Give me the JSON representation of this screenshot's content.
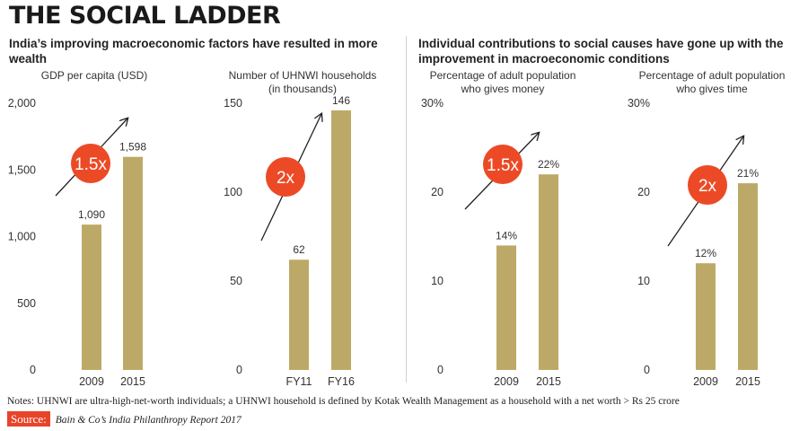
{
  "header": {
    "title": "THE SOCIAL LADDER",
    "subtitle_left": "India’s improving macroeconomic factors have resulted in more wealth",
    "subtitle_right": "Individual contributions to social causes have gone up with the improvement in macroeconomic conditions"
  },
  "chart_data": [
    {
      "type": "bar",
      "title": [
        "GDP per capita (USD)"
      ],
      "categories": [
        "2009",
        "2015"
      ],
      "values": [
        1090,
        1598
      ],
      "value_labels": [
        "1,090",
        "1,598"
      ],
      "ylim": [
        0,
        2000
      ],
      "yticks": [
        0,
        500,
        1000,
        1500,
        2000
      ],
      "ytick_labels": [
        "0",
        "500",
        "1,000",
        "1,500",
        "2,000"
      ],
      "badge": "1.5x"
    },
    {
      "type": "bar",
      "title": [
        "Number of UHNWI households",
        "(in thousands)"
      ],
      "categories": [
        "FY11",
        "FY16"
      ],
      "values": [
        62,
        146
      ],
      "value_labels": [
        "62",
        "146"
      ],
      "ylim": [
        0,
        150
      ],
      "yticks": [
        0,
        50,
        100,
        150
      ],
      "ytick_labels": [
        "0",
        "50",
        "100",
        "150"
      ],
      "badge": "2x"
    },
    {
      "type": "bar",
      "title": [
        "Percentage of adult population",
        "who gives money"
      ],
      "categories": [
        "2009",
        "2015"
      ],
      "values": [
        14,
        22
      ],
      "value_labels": [
        "14%",
        "22%"
      ],
      "ylim": [
        0,
        30
      ],
      "yticks": [
        0,
        10,
        20,
        30
      ],
      "ytick_labels": [
        "0",
        "10",
        "20",
        "30%"
      ],
      "badge": "1.5x"
    },
    {
      "type": "bar",
      "title": [
        "Percentage of adult population",
        "who gives time"
      ],
      "categories": [
        "2009",
        "2015"
      ],
      "values": [
        12,
        21
      ],
      "value_labels": [
        "12%",
        "21%"
      ],
      "ylim": [
        0,
        30
      ],
      "yticks": [
        0,
        10,
        20,
        30
      ],
      "ytick_labels": [
        "0",
        "10",
        "20",
        "30%"
      ],
      "badge": "2x"
    }
  ],
  "colors": {
    "bar": "#bda967",
    "badge": "#ec4a26",
    "axis_text": "#333333",
    "source_bg": "#e8442a"
  },
  "footer": {
    "notes": "Notes: UHNWI are ultra-high-net-worth individuals; a UHNWI household is defined by Kotak Wealth Management as a household with a net worth > Rs 25 crore",
    "source_label": "Source:",
    "source_text": "Bain & Co’s India Philanthropy Report 2017"
  }
}
